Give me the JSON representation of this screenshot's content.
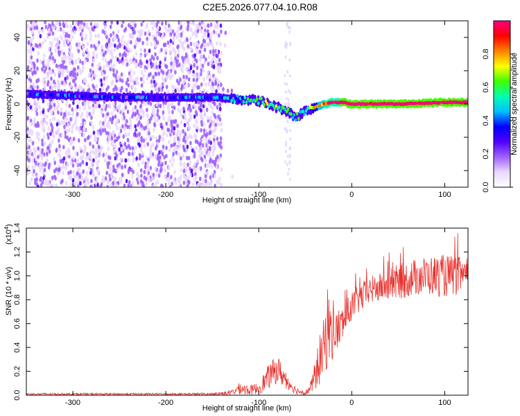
{
  "title": "C2E5.2026.077.04.10.R08",
  "chart_data": [
    {
      "type": "heatmap",
      "name": "spectrogram",
      "xlabel": "Height of straight line (km)",
      "ylabel": "Frequency (Hz)",
      "xlim": [
        -350,
        125
      ],
      "ylim": [
        -50,
        50
      ],
      "xticks": [
        -300,
        -200,
        -100,
        0,
        100
      ],
      "xtick_labels": [
        "-300",
        "-200",
        "-100",
        "0",
        "100"
      ],
      "yticks": [
        -40,
        -20,
        0,
        20,
        40
      ],
      "ytick_labels": [
        "-40",
        "-20",
        "0",
        "20",
        "40"
      ],
      "colorbar": {
        "label": "Normalized spectral amplitude",
        "range": [
          0,
          1
        ],
        "ticks": [
          0.0,
          0.2,
          0.4,
          0.6,
          0.8
        ],
        "tick_labels": [
          "0.0",
          "0.2",
          "0.4",
          "0.6",
          "0.8"
        ],
        "colors": [
          "#ffffff",
          "#e8d8ff",
          "#a060ff",
          "#5000ff",
          "#0000ff",
          "#00c0ff",
          "#00ffb0",
          "#40ff00",
          "#ffff00",
          "#ff8000",
          "#ff0000",
          "#ff0080"
        ]
      },
      "ridge": {
        "x": [
          -350,
          -300,
          -250,
          -200,
          -150,
          -120,
          -100,
          -90,
          -80,
          -70,
          -60,
          -50,
          -40,
          -30,
          -20,
          -10,
          0,
          50,
          100,
          125
        ],
        "y": [
          6,
          5,
          4,
          4,
          4,
          3,
          2,
          0,
          -2,
          -4,
          -8,
          -4,
          -2,
          0,
          1,
          1,
          0,
          0,
          1,
          1
        ],
        "amplitude": [
          0.3,
          0.3,
          0.3,
          0.3,
          0.35,
          0.45,
          0.55,
          0.6,
          0.6,
          0.55,
          0.5,
          0.55,
          0.7,
          0.85,
          0.9,
          0.95,
          0.95,
          0.95,
          0.95,
          0.95
        ]
      },
      "noise_region_x": [
        -350,
        -140
      ]
    },
    {
      "type": "line",
      "name": "snr",
      "xlabel": "Height of straight line (km)",
      "ylabel": "SNR (10 * v/v)",
      "multiplier_label": "(x10",
      "multiplier_exp": "4",
      "multiplier_close": ")",
      "xlim": [
        -350,
        125
      ],
      "ylim": [
        0,
        1.4
      ],
      "xticks": [
        -300,
        -200,
        -100,
        0,
        100
      ],
      "xtick_labels": [
        "-300",
        "-200",
        "-100",
        "0",
        "100"
      ],
      "yticks": [
        0,
        0.2,
        0.4,
        0.6,
        0.8,
        1.0,
        1.2,
        1.4
      ],
      "ytick_labels": [
        "0.0",
        "0.2",
        "0.4",
        "0.6",
        "0.8",
        "1.0",
        "1.2",
        "1.4"
      ],
      "series": [
        {
          "name": "SNR",
          "color": "#e8302c",
          "x": [
            -350,
            -200,
            -150,
            -130,
            -120,
            -110,
            -100,
            -90,
            -80,
            -70,
            -60,
            -50,
            -45,
            -40,
            -35,
            -30,
            -25,
            -20,
            -10,
            0,
            10,
            20,
            30,
            50,
            75,
            100,
            125
          ],
          "mean": [
            0.01,
            0.01,
            0.01,
            0.02,
            0.06,
            0.04,
            0.06,
            0.15,
            0.22,
            0.12,
            0.04,
            0.02,
            0.05,
            0.15,
            0.28,
            0.4,
            0.55,
            0.5,
            0.6,
            0.75,
            0.82,
            0.88,
            0.9,
            0.95,
            1.0,
            1.0,
            1.0
          ],
          "spread": [
            0.008,
            0.008,
            0.01,
            0.02,
            0.05,
            0.04,
            0.05,
            0.1,
            0.12,
            0.07,
            0.03,
            0.02,
            0.04,
            0.12,
            0.2,
            0.25,
            0.3,
            0.2,
            0.15,
            0.12,
            0.12,
            0.12,
            0.12,
            0.15,
            0.16,
            0.18,
            0.15
          ]
        }
      ]
    }
  ]
}
